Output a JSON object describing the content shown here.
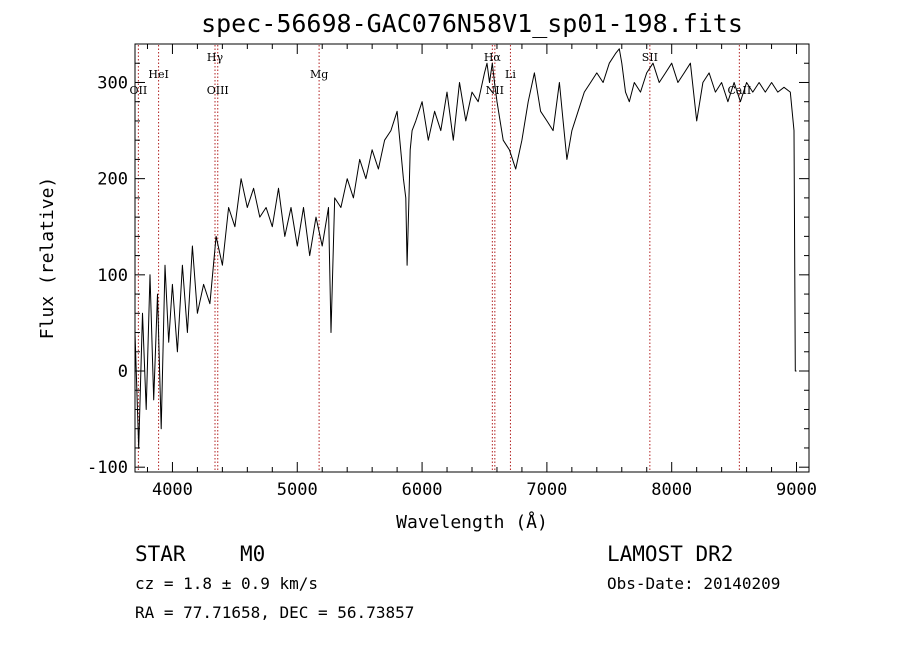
{
  "chart_data": {
    "type": "line",
    "title": "spec-56698-GAC076N58V1_sp01-198.fits",
    "xlabel": "Wavelength (Å)",
    "ylabel": "Flux (relative)",
    "xlim": [
      3700,
      9100
    ],
    "ylim": [
      -105,
      340
    ],
    "x_ticks": [
      4000,
      5000,
      6000,
      7000,
      8000,
      9000
    ],
    "y_ticks": [
      -100,
      0,
      100,
      200,
      300
    ],
    "grid": false,
    "line_color": "#000000",
    "marker_color": "#b22222",
    "spectral_lines": [
      {
        "label": "OII",
        "wavelength": 3727,
        "label_level": "low"
      },
      {
        "label": "HeI",
        "wavelength": 3889,
        "label_level": "mid"
      },
      {
        "label": "Hγ",
        "wavelength": 4341,
        "label_level": "high"
      },
      {
        "label": "OIII",
        "wavelength": 4363,
        "label_level": "low"
      },
      {
        "label": "Mg",
        "wavelength": 5175,
        "label_level": "mid"
      },
      {
        "label": "Hα",
        "wavelength": 6563,
        "label_level": "high"
      },
      {
        "label": "NII",
        "wavelength": 6583,
        "label_level": "low"
      },
      {
        "label": "Li",
        "wavelength": 6708,
        "label_level": "mid"
      },
      {
        "label": "SII",
        "wavelength": 7825,
        "label_level": "high"
      },
      {
        "label": "CaII",
        "wavelength": 8542,
        "label_level": "low"
      }
    ],
    "series": [
      {
        "x": [
          3700,
          3730,
          3760,
          3790,
          3820,
          3850,
          3880,
          3910,
          3940,
          3970,
          4000,
          4040,
          4080,
          4120,
          4160,
          4200,
          4250,
          4300,
          4350,
          4400,
          4450,
          4500,
          4550,
          4600,
          4650,
          4700,
          4750,
          4800,
          4850,
          4900,
          4950,
          5000,
          5050,
          5100,
          5150,
          5200,
          5250,
          5270,
          5300,
          5350,
          5400,
          5450,
          5500,
          5550,
          5600,
          5650,
          5700,
          5750,
          5800,
          5850,
          5870,
          5880,
          5893,
          5905,
          5920,
          5950,
          6000,
          6050,
          6100,
          6150,
          6200,
          6250,
          6300,
          6350,
          6400,
          6450,
          6500,
          6520,
          6540,
          6563,
          6580,
          6600,
          6650,
          6700,
          6750,
          6800,
          6850,
          6900,
          6950,
          7000,
          7050,
          7100,
          7130,
          7160,
          7200,
          7250,
          7300,
          7350,
          7400,
          7450,
          7500,
          7550,
          7580,
          7600,
          7630,
          7660,
          7700,
          7750,
          7800,
          7850,
          7900,
          7950,
          8000,
          8050,
          8100,
          8150,
          8200,
          8250,
          8300,
          8350,
          8400,
          8450,
          8500,
          8550,
          8600,
          8650,
          8700,
          8750,
          8800,
          8850,
          8900,
          8950,
          8980,
          8990,
          9000
        ],
        "y": [
          40,
          -80,
          60,
          -40,
          100,
          -30,
          80,
          -60,
          110,
          30,
          90,
          20,
          110,
          40,
          130,
          60,
          90,
          70,
          140,
          110,
          170,
          150,
          200,
          170,
          190,
          160,
          170,
          150,
          190,
          140,
          170,
          130,
          170,
          120,
          160,
          130,
          170,
          40,
          180,
          170,
          200,
          180,
          220,
          200,
          230,
          210,
          240,
          250,
          270,
          200,
          180,
          110,
          170,
          230,
          250,
          260,
          280,
          240,
          270,
          250,
          290,
          240,
          300,
          260,
          290,
          280,
          310,
          320,
          300,
          320,
          300,
          280,
          240,
          230,
          210,
          240,
          280,
          310,
          270,
          260,
          250,
          300,
          260,
          220,
          250,
          270,
          290,
          300,
          310,
          300,
          320,
          330,
          335,
          320,
          290,
          280,
          300,
          290,
          310,
          320,
          300,
          310,
          320,
          300,
          310,
          320,
          260,
          300,
          310,
          290,
          300,
          280,
          300,
          280,
          300,
          290,
          300,
          290,
          300,
          290,
          295,
          290,
          250,
          0,
          0
        ]
      }
    ]
  },
  "info": {
    "object_class": "STAR",
    "subclass": "M0",
    "redshift": "cz =  1.8 ± 0.9 km/s",
    "coords": "RA =  77.71658, DEC =  56.73857",
    "survey": "LAMOST DR2",
    "obs_date": "Obs-Date: 20140209"
  }
}
